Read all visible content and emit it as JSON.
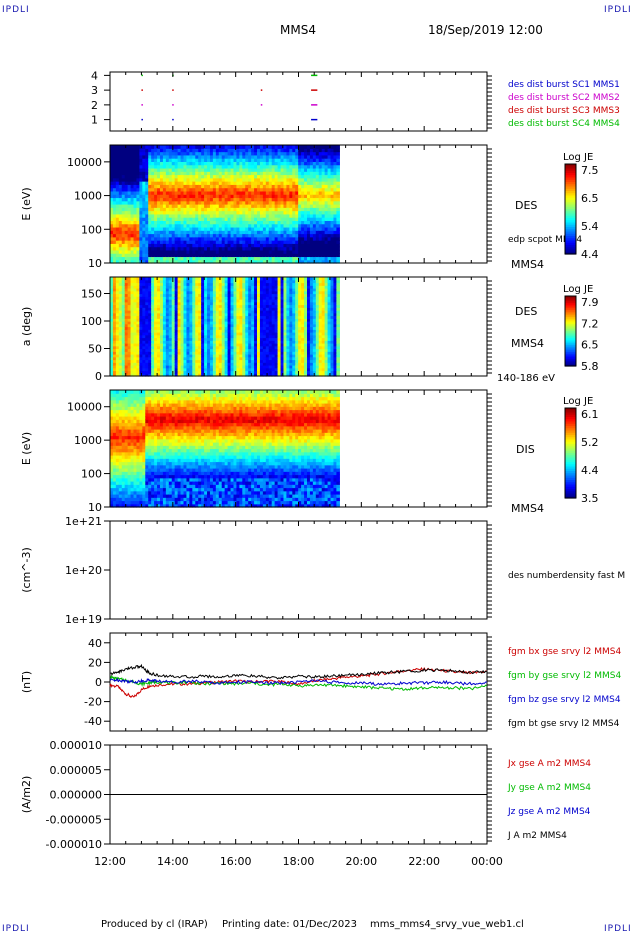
{
  "corner_label": "IPDLI",
  "header": {
    "spacecraft": "MMS4",
    "datetime": "18/Sep/2019 12:00"
  },
  "footer": {
    "producer": "Produced by cl (IRAP)",
    "printing_date": "Printing date: 01/Dec/2023",
    "filename": "mms_mms4_srvy_vue_web1.cl"
  },
  "time_axis": {
    "start": "12:00",
    "end": "00:00",
    "ticks": [
      "12:00",
      "14:00",
      "16:00",
      "18:00",
      "20:00",
      "22:00",
      "00:00"
    ]
  },
  "chart_data": [
    {
      "type": "scatter",
      "name": "burst availability",
      "yticks": [
        "1",
        "2",
        "3",
        "4"
      ],
      "legend": [
        {
          "label": "des dist burst SC1 MMS1",
          "color": "#0000cc"
        },
        {
          "label": "des dist burst SC2 MMS2",
          "color": "#cc00cc"
        },
        {
          "label": "des dist burst SC3 MMS3",
          "color": "#cc0000"
        },
        {
          "label": "des dist burst SC4 MMS4",
          "color": "#00bb00"
        }
      ],
      "segments": [
        {
          "sc": 1,
          "t": [
            13.0,
            13.02
          ]
        },
        {
          "sc": 1,
          "t": [
            13.98,
            14.0
          ]
        },
        {
          "sc": 1,
          "t": [
            18.4,
            18.6
          ]
        },
        {
          "sc": 2,
          "t": [
            13.0,
            13.02
          ]
        },
        {
          "sc": 2,
          "t": [
            13.98,
            14.0
          ]
        },
        {
          "sc": 2,
          "t": [
            16.8,
            16.82
          ]
        },
        {
          "sc": 2,
          "t": [
            18.4,
            18.6
          ]
        },
        {
          "sc": 3,
          "t": [
            13.0,
            13.02
          ]
        },
        {
          "sc": 3,
          "t": [
            13.98,
            14.0
          ]
        },
        {
          "sc": 3,
          "t": [
            16.8,
            16.82
          ]
        },
        {
          "sc": 3,
          "t": [
            18.4,
            18.6
          ]
        },
        {
          "sc": 4,
          "t": [
            13.0,
            13.02
          ]
        },
        {
          "sc": 4,
          "t": [
            13.98,
            14.0
          ]
        },
        {
          "sc": 4,
          "t": [
            18.4,
            18.6
          ]
        }
      ]
    },
    {
      "type": "heatmap",
      "ylabel": "E (eV)",
      "yscale": "log",
      "yticks": [
        "10",
        "100",
        "1000",
        "10000"
      ],
      "instrument": "DES",
      "overlay_label": "edp scpot MMS4",
      "sc_label": "MMS4",
      "colorbar": {
        "title": "Log JE",
        "ticks": [
          "7.5",
          "6.5",
          "5.4",
          "4.4"
        ],
        "range": [
          4.4,
          7.5
        ]
      },
      "data_end_hour": 19.3
    },
    {
      "type": "heatmap",
      "ylabel": "a (deg)",
      "yticks": [
        "0",
        "50",
        "100",
        "150"
      ],
      "ylim": [
        0,
        180
      ],
      "instrument": "DES",
      "sc_label": "MMS4",
      "energy_label": "140-186 eV",
      "colorbar": {
        "title": "Log JE",
        "ticks": [
          "7.9",
          "7.2",
          "6.5",
          "5.8"
        ],
        "range": [
          5.8,
          7.9
        ]
      },
      "data_end_hour": 19.3
    },
    {
      "type": "heatmap",
      "ylabel": "E (eV)",
      "yscale": "log",
      "yticks": [
        "10",
        "100",
        "1000",
        "10000"
      ],
      "instrument": "DIS",
      "sc_label": "MMS4",
      "colorbar": {
        "title": "Log JE",
        "ticks": [
          "6.1",
          "5.2",
          "4.4",
          "3.5"
        ],
        "range": [
          3.5,
          6.1
        ]
      },
      "data_end_hour": 19.3
    },
    {
      "type": "line",
      "ylabel": "(cm^-3)",
      "yscale": "log",
      "yticks": [
        "1e+19",
        "1e+20",
        "1e+21"
      ],
      "legend": [
        {
          "label": "des numberdensity fast M",
          "color": "#000000"
        }
      ],
      "series": []
    },
    {
      "type": "line",
      "ylabel": "(nT)",
      "yticks": [
        "-40",
        "-20",
        "0",
        "20",
        "40"
      ],
      "ylim": [
        -50,
        50
      ],
      "legend": [
        {
          "label": "fgm bx gse srvy l2 MMS4",
          "color": "#cc0000"
        },
        {
          "label": "fgm by gse srvy l2 MMS4",
          "color": "#00bb00"
        },
        {
          "label": "fgm bz gse srvy l2 MMS4",
          "color": "#0000cc"
        },
        {
          "label": "fgm bt gse srvy l2 MMS4",
          "color": "#000000"
        }
      ],
      "x": [
        12.0,
        12.25,
        12.5,
        12.75,
        13.0,
        13.25,
        13.5,
        14.0,
        14.5,
        15.0,
        15.5,
        16.0,
        16.5,
        17.0,
        17.5,
        18.0,
        18.5,
        19.0,
        19.5,
        20.0,
        20.5,
        21.0,
        21.5,
        22.0,
        22.5,
        23.0,
        23.5,
        24.0
      ],
      "series": [
        {
          "name": "fgm bx gse srvy l2 MMS4",
          "color": "#cc0000",
          "values": [
            -3,
            -5,
            -12,
            -16,
            -8,
            -4,
            -3,
            -2,
            -2,
            -1,
            0,
            1,
            0,
            1,
            0,
            -2,
            1,
            3,
            5,
            6,
            8,
            10,
            12,
            13,
            12,
            10,
            9,
            11
          ]
        },
        {
          "name": "fgm by gse srvy l2 MMS4",
          "color": "#00bb00",
          "values": [
            5,
            3,
            2,
            0,
            -2,
            -1,
            0,
            -1,
            0,
            -2,
            -1,
            -2,
            -1,
            -3,
            -2,
            -4,
            -3,
            -3,
            -4,
            -5,
            -6,
            -7,
            -7,
            -6,
            -6,
            -6,
            -7,
            -4
          ]
        },
        {
          "name": "fgm bz gse srvy l2 MMS4",
          "color": "#0000cc",
          "values": [
            2,
            2,
            1,
            0,
            1,
            2,
            1,
            0,
            1,
            0,
            -1,
            0,
            0,
            -1,
            -1,
            0,
            1,
            0,
            -1,
            -1,
            -2,
            -2,
            -1,
            -1,
            0,
            -1,
            -2,
            0
          ]
        },
        {
          "name": "fgm bt gse srvy l2 MMS4",
          "color": "#000000",
          "values": [
            8,
            10,
            13,
            15,
            16,
            9,
            7,
            6,
            5,
            6,
            5,
            7,
            6,
            5,
            4,
            6,
            5,
            6,
            7,
            8,
            9,
            10,
            11,
            12,
            12,
            11,
            10,
            11
          ]
        }
      ]
    },
    {
      "type": "line",
      "ylabel": "(A/m2)",
      "yticks": [
        "-0.000010",
        "-0.000005",
        "0.000000",
        "0.000005",
        "0.000010"
      ],
      "ylim": [
        -1e-05,
        1e-05
      ],
      "legend": [
        {
          "label": "Jx gse A m2 MMS4",
          "color": "#cc0000"
        },
        {
          "label": "Jy gse A m2 MMS4",
          "color": "#00bb00"
        },
        {
          "label": "Jz gse A m2 MMS4",
          "color": "#0000cc"
        },
        {
          "label": "J A m2 MMS4",
          "color": "#000000"
        }
      ],
      "x": [
        12.0,
        24.0
      ],
      "series": [
        {
          "name": "J A m2 MMS4",
          "color": "#000000",
          "values": [
            0,
            0
          ]
        }
      ]
    }
  ]
}
